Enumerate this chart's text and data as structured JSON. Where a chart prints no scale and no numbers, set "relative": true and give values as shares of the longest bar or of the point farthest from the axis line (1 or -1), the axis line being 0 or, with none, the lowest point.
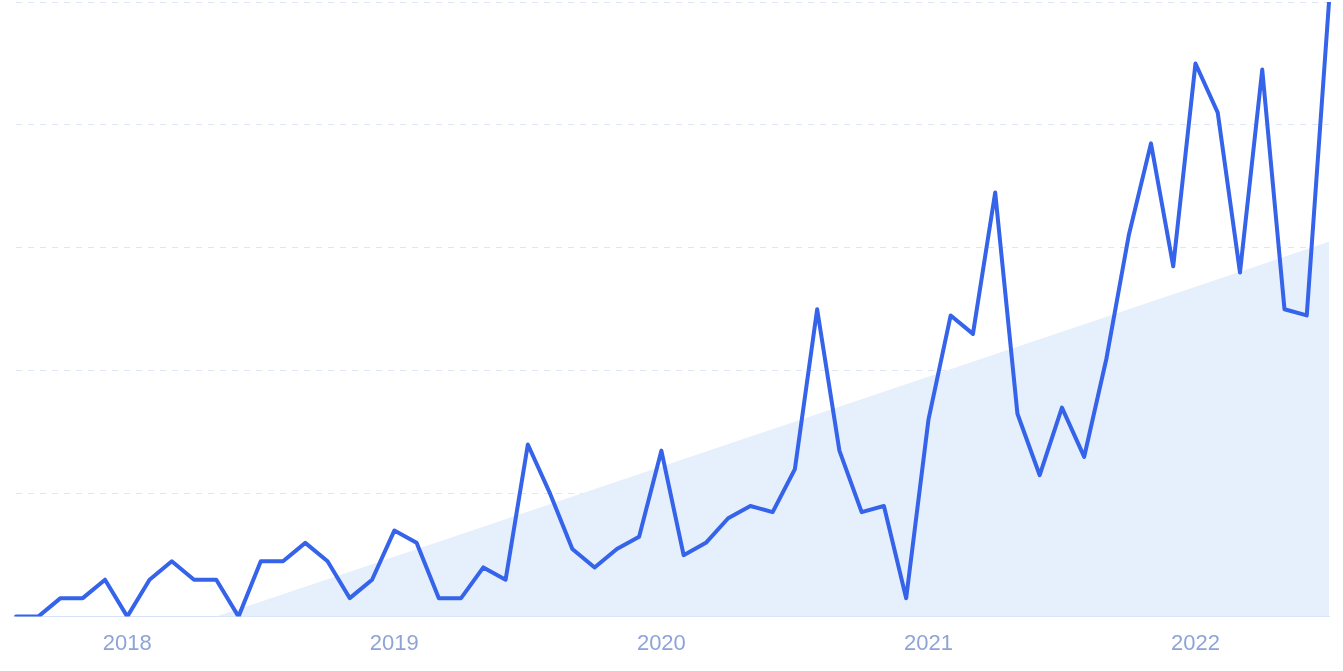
{
  "chart_data": {
    "type": "line",
    "relative": true,
    "grid": "y",
    "marker": "none",
    "categories": [
      null,
      null,
      null,
      null,
      null,
      "2018",
      null,
      null,
      null,
      null,
      null,
      null,
      null,
      null,
      null,
      null,
      null,
      "2019",
      null,
      null,
      null,
      null,
      null,
      null,
      null,
      null,
      null,
      null,
      null,
      "2020",
      null,
      null,
      null,
      null,
      null,
      null,
      null,
      null,
      null,
      null,
      null,
      "2021",
      null,
      null,
      null,
      null,
      null,
      null,
      null,
      null,
      null,
      null,
      null,
      "2022",
      null,
      null,
      null,
      null,
      null,
      null
    ],
    "series": [
      {
        "color": "#3563e9",
        "values": [
          0,
          0,
          0.03,
          0.03,
          0.06,
          0,
          0.06,
          0.09,
          0.06,
          0.06,
          0,
          0.09,
          0.09,
          0.12,
          0.09,
          0.03,
          0.06,
          0.14,
          0.12,
          0.03,
          0.03,
          0.08,
          0.06,
          0.28,
          0.2,
          0.11,
          0.08,
          0.11,
          0.13,
          0.27,
          0.1,
          0.12,
          0.16,
          0.18,
          0.17,
          0.24,
          0.5,
          0.27,
          0.17,
          0.18,
          0.03,
          0.32,
          0.49,
          0.46,
          0.69,
          0.33,
          0.23,
          0.34,
          0.26,
          0.42,
          0.62,
          0.77,
          0.57,
          0.9,
          0.82,
          0.56,
          0.89,
          0.5,
          0.49,
          1
        ]
      },
      {
        "type": "area",
        "color": "#e6effc",
        "values": [
          null,
          null,
          null,
          null,
          null,
          null,
          null,
          null,
          null,
          0,
          null,
          null,
          null,
          null,
          null,
          null,
          null,
          null,
          null,
          null,
          null,
          null,
          null,
          null,
          null,
          null,
          null,
          null,
          null,
          null,
          null,
          null,
          null,
          null,
          null,
          null,
          null,
          null,
          null,
          null,
          null,
          null,
          null,
          null,
          null,
          null,
          null,
          null,
          null,
          null,
          null,
          null,
          null,
          null,
          null,
          null,
          null,
          null,
          null,
          0.61
        ]
      }
    ]
  }
}
